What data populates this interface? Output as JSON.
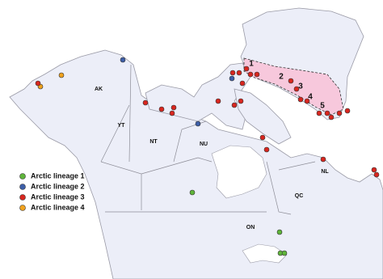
{
  "map": {
    "region_labels": [
      "AK",
      "YT",
      "NT",
      "NU",
      "NL",
      "QC",
      "ON"
    ],
    "zone_labels": [
      "1",
      "2",
      "3",
      "4",
      "5"
    ],
    "legend": [
      {
        "name": "Arctic lineage 1",
        "color": "#5fb53a"
      },
      {
        "name": "Arctic lineage 2",
        "color": "#3d5ea8"
      },
      {
        "name": "Arctic lineage 3",
        "color": "#d8261f"
      },
      {
        "name": "Arctic lineage 4",
        "color": "#f0a21e"
      }
    ]
  }
}
